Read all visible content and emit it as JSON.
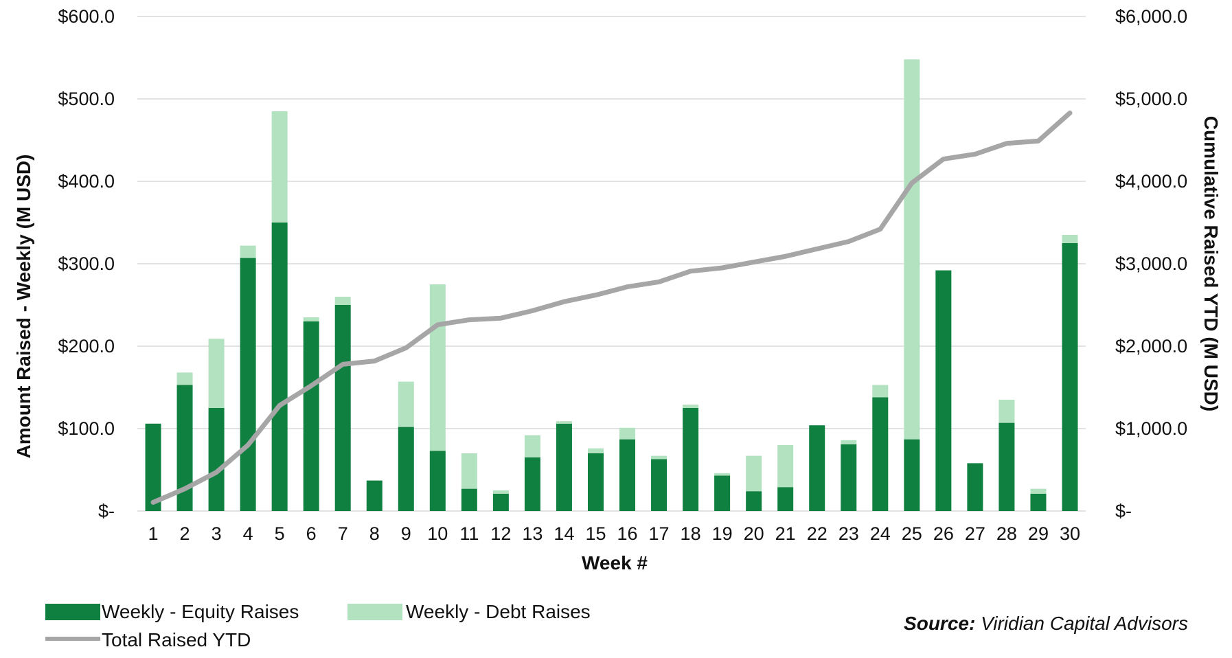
{
  "chart_data": {
    "type": "bar",
    "stacked": true,
    "categories": [
      "1",
      "2",
      "3",
      "4",
      "5",
      "6",
      "7",
      "8",
      "9",
      "10",
      "11",
      "12",
      "13",
      "14",
      "15",
      "16",
      "17",
      "18",
      "19",
      "20",
      "21",
      "22",
      "23",
      "24",
      "25",
      "26",
      "27",
      "28",
      "29",
      "30"
    ],
    "series": [
      {
        "name": "Weekly - Equity Raises",
        "type": "bar",
        "axis": "left",
        "color": "#0f8040",
        "values": [
          106,
          153,
          125,
          307,
          350,
          230,
          250,
          37,
          102,
          73,
          27,
          21,
          65,
          106,
          70,
          87,
          63,
          125,
          43,
          24,
          29,
          104,
          81,
          138,
          87,
          292,
          58,
          107,
          21,
          325
        ]
      },
      {
        "name": "Weekly - Debt Raises",
        "type": "bar",
        "axis": "left",
        "color": "#b3e2c0",
        "values": [
          0,
          15,
          84,
          15,
          135,
          5,
          10,
          0,
          55,
          202,
          43,
          4,
          27,
          3,
          6,
          14,
          4,
          4,
          3,
          43,
          51,
          0,
          5,
          15,
          461,
          0,
          0,
          28,
          6,
          10
        ]
      },
      {
        "name": "Total Raised YTD",
        "type": "line",
        "axis": "right",
        "color": "#a6a6a6",
        "values": [
          105,
          270,
          470,
          800,
          1280,
          1520,
          1780,
          1820,
          1980,
          2260,
          2320,
          2340,
          2430,
          2540,
          2620,
          2720,
          2780,
          2910,
          2950,
          3020,
          3090,
          3180,
          3270,
          3420,
          3980,
          4270,
          4330,
          4460,
          4490,
          4830
        ]
      }
    ],
    "xlabel": "Week #",
    "ylabel": "Amount Raised - Weekly (M USD)",
    "ylabel_right": "Cumulative Raised YTD (M USD)",
    "ylim": [
      0,
      600
    ],
    "ylim_right": [
      0,
      6000
    ],
    "y_ticks": [
      "$-",
      "$100.0",
      "$200.0",
      "$300.0",
      "$400.0",
      "$500.0",
      "$600.0"
    ],
    "y_ticks_right": [
      "$-",
      "$1,000.0",
      "$2,000.0",
      "$3,000.0",
      "$4,000.0",
      "$5,000.0",
      "$6,000.0"
    ],
    "grid": true,
    "legend_position": "bottom-left"
  },
  "source": {
    "label": "Source:",
    "text": " Viridian Capital Advisors"
  }
}
